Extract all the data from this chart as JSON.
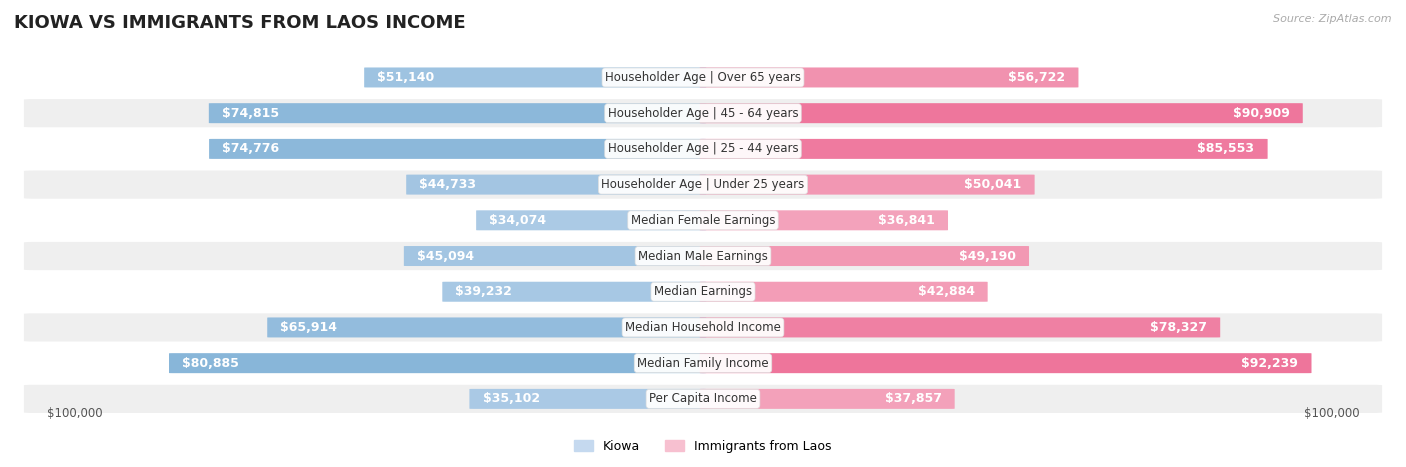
{
  "title": "Kiowa vs Immigrants from Laos Income",
  "source": "Source: ZipAtlas.com",
  "categories": [
    "Per Capita Income",
    "Median Family Income",
    "Median Household Income",
    "Median Earnings",
    "Median Male Earnings",
    "Median Female Earnings",
    "Householder Age | Under 25 years",
    "Householder Age | 25 - 44 years",
    "Householder Age | 45 - 64 years",
    "Householder Age | Over 65 years"
  ],
  "kiowa_values": [
    35102,
    80885,
    65914,
    39232,
    45094,
    34074,
    44733,
    74776,
    74815,
    51140
  ],
  "laos_values": [
    37857,
    92239,
    78327,
    42884,
    49190,
    36841,
    50041,
    85553,
    90909,
    56722
  ],
  "kiowa_labels": [
    "$35,102",
    "$80,885",
    "$65,914",
    "$39,232",
    "$45,094",
    "$34,074",
    "$44,733",
    "$74,776",
    "$74,815",
    "$51,140"
  ],
  "laos_labels": [
    "$37,857",
    "$92,239",
    "$78,327",
    "$42,884",
    "$49,190",
    "$36,841",
    "$50,041",
    "$85,553",
    "$90,909",
    "$56,722"
  ],
  "max_value": 100000,
  "kiowa_color_light": "#c5d9ef",
  "kiowa_color_dark": "#7aaed4",
  "laos_color_light": "#f7c0d0",
  "laos_color_dark": "#ee6f97",
  "bg_color": "#ffffff",
  "row_bg": "#efefef",
  "legend_kiowa": "Kiowa",
  "legend_laos": "Immigrants from Laos",
  "xlabel_left": "$100,000",
  "xlabel_right": "$100,000",
  "title_fontsize": 13,
  "label_fontsize": 9,
  "category_fontsize": 8.5,
  "inner_label_threshold": 0.25
}
